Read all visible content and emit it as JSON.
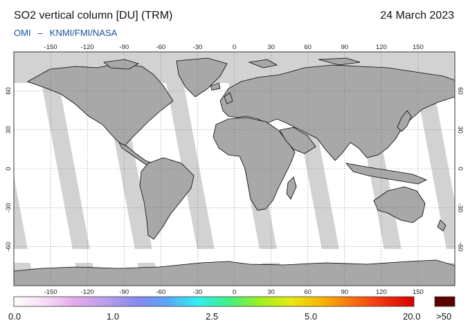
{
  "header": {
    "title": "SO2 vertical column [DU] (TRM)",
    "date": "24 March 2023",
    "source_instrument": "OMI",
    "source_separator": "–",
    "source_agencies": "KNMI/FMI/NASA"
  },
  "map": {
    "lon_ticks": [
      "-150",
      "-120",
      "-90",
      "-60",
      "-30",
      "0",
      "30",
      "60",
      "90",
      "120",
      "150"
    ],
    "lat_ticks": [
      "60",
      "30",
      "0",
      "-30",
      "-60"
    ],
    "colors": {
      "no_data": "#d2d2d2",
      "land_gap": "#a8a8a8",
      "ocean_data": "#ffffff",
      "coast": "#000000",
      "grid": "#777777"
    }
  },
  "colorbar": {
    "labels": [
      "0.0",
      "1.0",
      "2.5",
      "5.0",
      "20.0"
    ],
    "overflow_label": ">50",
    "overflow_color": "#5a0000",
    "stops": [
      "#ffffff",
      "#f6dcf6",
      "#e6a8ec",
      "#b6a0ec",
      "#8888ee",
      "#58a8f8",
      "#30f0f0",
      "#40f080",
      "#9ef020",
      "#e8e810",
      "#f8b400",
      "#f87010",
      "#f03010",
      "#d80000"
    ]
  }
}
